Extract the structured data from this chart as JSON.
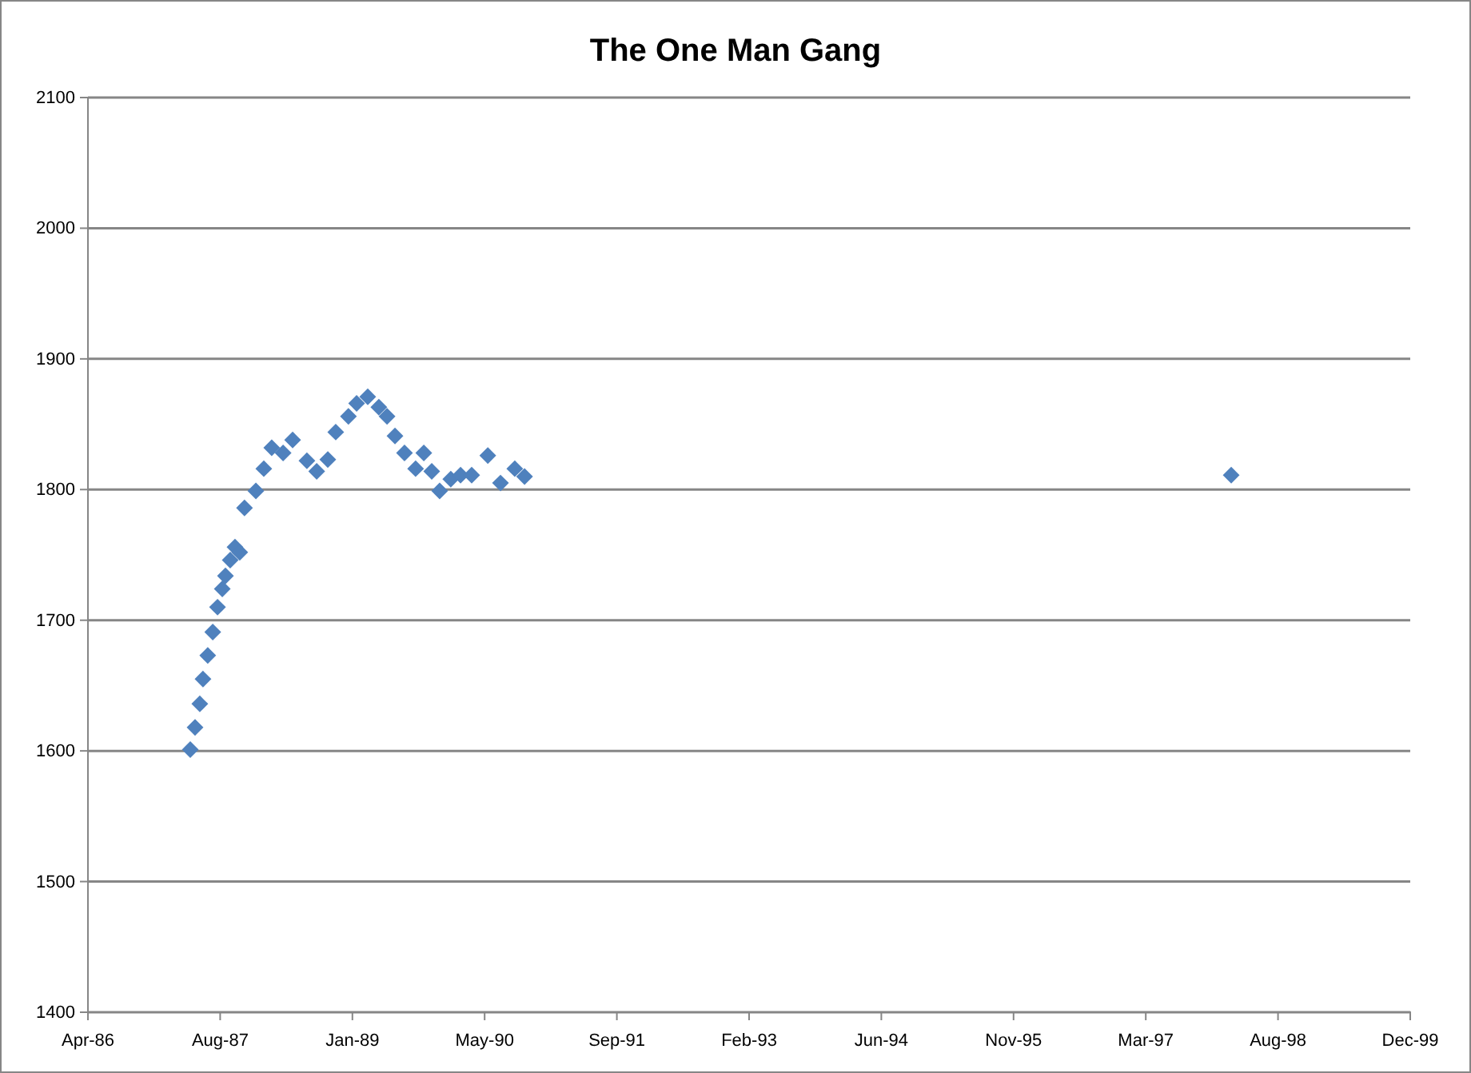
{
  "chart_data": {
    "type": "scatter",
    "title": "The One Man Gang",
    "x": [
      "1987-04-30",
      "1987-05-18",
      "1987-06-05",
      "1987-06-17",
      "1987-07-05",
      "1987-07-24",
      "1987-08-11",
      "1987-08-29",
      "1987-09-10",
      "1987-09-28",
      "1987-10-16",
      "1987-11-03",
      "1987-11-21",
      "1988-01-03",
      "1988-02-02",
      "1988-03-03",
      "1988-04-15",
      "1988-05-21",
      "1988-07-14",
      "1988-08-20",
      "1988-10-01",
      "1988-10-31",
      "1988-12-18",
      "1989-01-18",
      "1989-03-01",
      "1989-04-12",
      "1989-05-13",
      "1989-06-12",
      "1989-07-18",
      "1989-08-29",
      "1989-09-29",
      "1989-10-29",
      "1989-11-28",
      "1990-01-09",
      "1990-02-15",
      "1990-03-29",
      "1990-05-29",
      "1990-07-16",
      "1990-09-08",
      "1990-10-15",
      "1998-02-07"
    ],
    "series": [
      {
        "color": "#4f81bd",
        "values": [
          1601,
          1618,
          1636,
          1655,
          1673,
          1691,
          1710,
          1724,
          1734,
          1746,
          1756,
          1752,
          1786,
          1799,
          1816,
          1832,
          1828,
          1838,
          1822,
          1814,
          1823,
          1844,
          1856,
          1866,
          1871,
          1863,
          1856,
          1841,
          1828,
          1816,
          1828,
          1814,
          1799,
          1808,
          1811,
          1811,
          1826,
          1805,
          1816,
          1810,
          1811
        ]
      }
    ],
    "xlim": [
      "1986-04-08",
      "1999-12-16"
    ],
    "xticks": [
      {
        "value": "1986-04-08",
        "label": "Apr-86"
      },
      {
        "value": "1987-08-21",
        "label": "Aug-87"
      },
      {
        "value": "1989-01-02",
        "label": "Jan-89"
      },
      {
        "value": "1990-05-17",
        "label": "May-90"
      },
      {
        "value": "1991-09-29",
        "label": "Sep-91"
      },
      {
        "value": "1993-02-10",
        "label": "Feb-93"
      },
      {
        "value": "1994-06-25",
        "label": "Jun-94"
      },
      {
        "value": "1995-11-07",
        "label": "Nov-95"
      },
      {
        "value": "1997-03-21",
        "label": "Mar-97"
      },
      {
        "value": "1998-08-03",
        "label": "Aug-98"
      },
      {
        "value": "1999-12-16",
        "label": "Dec-99"
      }
    ],
    "ylim": [
      1400,
      2100
    ],
    "yticks": [
      1400,
      1500,
      1600,
      1700,
      1800,
      1900,
      2000,
      2100
    ],
    "grid": "y",
    "marker": "diamond"
  }
}
